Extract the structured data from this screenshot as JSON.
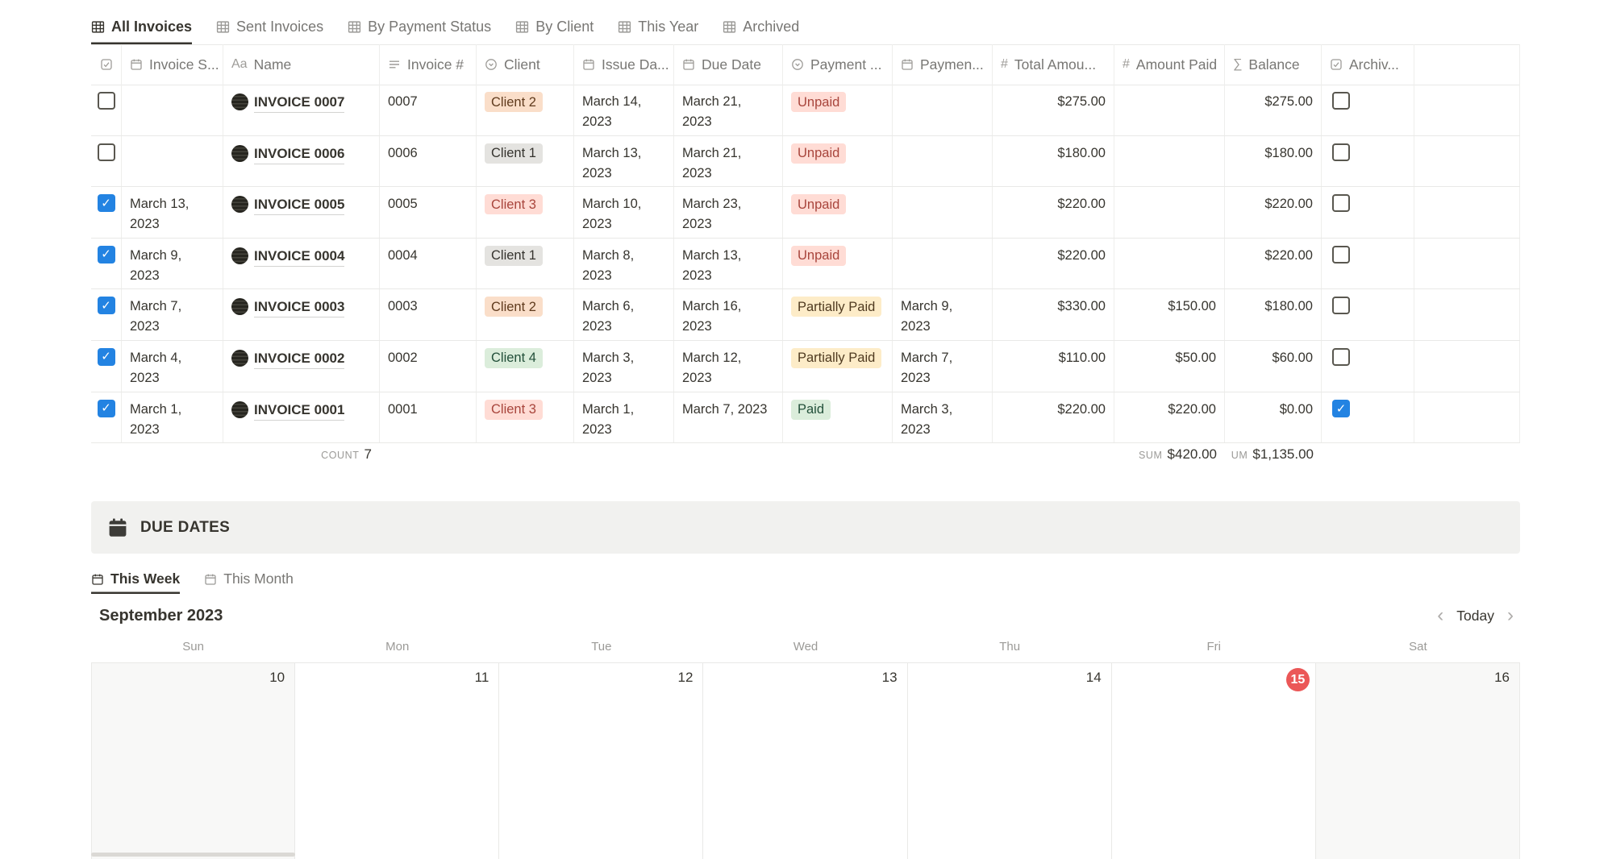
{
  "colors": {
    "accent_blue": "#2383e2",
    "today_red": "#eb5757",
    "banner_bg": "#f1f1ef",
    "divider": "#e9e9e7",
    "tag_orange_bg": "#fadec9",
    "tag_gray_bg": "#e4e3e0",
    "tag_red_bg": "#ffdcd5",
    "tag_green_bg": "#dbeddb",
    "tag_yellow_bg": "#fdecc8"
  },
  "view_tabs": [
    {
      "label": "All Invoices",
      "active": true
    },
    {
      "label": "Sent Invoices",
      "active": false
    },
    {
      "label": "By Payment Status",
      "active": false
    },
    {
      "label": "By Client",
      "active": false
    },
    {
      "label": "This Year",
      "active": false
    },
    {
      "label": "Archived",
      "active": false
    }
  ],
  "table": {
    "columns": [
      {
        "label": "",
        "icon": "checkbox-icon"
      },
      {
        "label": "Invoice S...",
        "icon": "calendar-icon"
      },
      {
        "label": "Name",
        "icon": "Aa"
      },
      {
        "label": "Invoice #",
        "icon": "text-icon"
      },
      {
        "label": "Client",
        "icon": "select-icon"
      },
      {
        "label": "Issue Da...",
        "icon": "calendar-icon"
      },
      {
        "label": "Due Date",
        "icon": "calendar-icon"
      },
      {
        "label": "Payment ...",
        "icon": "select-icon"
      },
      {
        "label": "Paymen...",
        "icon": "calendar-icon"
      },
      {
        "label": "Total Amou...",
        "icon": "hash-icon"
      },
      {
        "label": "Amount Paid",
        "icon": "hash-icon"
      },
      {
        "label": "Balance",
        "icon": "sigma-icon"
      },
      {
        "label": "Archiv...",
        "icon": "checkbox-icon"
      }
    ],
    "rows": [
      {
        "selected": "unchecked",
        "invoice_sent": "",
        "name": "INVOICE 0007",
        "number": "0007",
        "client": "Client 2",
        "client_color": "orange",
        "issue_date": "March 14,\n2023",
        "due_date": "March 21,\n2023",
        "status": "Unpaid",
        "status_color": "red",
        "payment_date": "",
        "total": "$275.00",
        "amount_paid": "",
        "balance": "$275.00",
        "archived": "unchecked"
      },
      {
        "selected": "unchecked",
        "invoice_sent": "",
        "name": "INVOICE 0006",
        "number": "0006",
        "client": "Client 1",
        "client_color": "gray",
        "issue_date": "March 13,\n2023",
        "due_date": "March 21,\n2023",
        "status": "Unpaid",
        "status_color": "red",
        "payment_date": "",
        "total": "$180.00",
        "amount_paid": "",
        "balance": "$180.00",
        "archived": "unchecked"
      },
      {
        "selected": "checked",
        "invoice_sent": "March 13,\n2023",
        "name": "INVOICE 0005",
        "number": "0005",
        "client": "Client 3",
        "client_color": "red",
        "issue_date": "March 10,\n2023",
        "due_date": "March 23,\n2023",
        "status": "Unpaid",
        "status_color": "red",
        "payment_date": "",
        "total": "$220.00",
        "amount_paid": "",
        "balance": "$220.00",
        "archived": "unchecked"
      },
      {
        "selected": "checked",
        "invoice_sent": "March 9, 2023",
        "name": "INVOICE 0004",
        "number": "0004",
        "client": "Client 1",
        "client_color": "gray",
        "issue_date": "March 8,\n2023",
        "due_date": "March 13,\n2023",
        "status": "Unpaid",
        "status_color": "red",
        "payment_date": "",
        "total": "$220.00",
        "amount_paid": "",
        "balance": "$220.00",
        "archived": "unchecked"
      },
      {
        "selected": "checked",
        "invoice_sent": "March 7, 2023",
        "name": "INVOICE 0003",
        "number": "0003",
        "client": "Client 2",
        "client_color": "orange",
        "issue_date": "March 6,\n2023",
        "due_date": "March 16,\n2023",
        "status": "Partially Paid",
        "status_color": "yellow",
        "payment_date": "March 9,\n2023",
        "total": "$330.00",
        "amount_paid": "$150.00",
        "balance": "$180.00",
        "archived": "unchecked"
      },
      {
        "selected": "checked",
        "invoice_sent": "March 4, 2023",
        "name": "INVOICE 0002",
        "number": "0002",
        "client": "Client 4",
        "client_color": "green",
        "issue_date": "March 3,\n2023",
        "due_date": "March 12,\n2023",
        "status": "Partially Paid",
        "status_color": "yellow",
        "payment_date": "March 7,\n2023",
        "total": "$110.00",
        "amount_paid": "$50.00",
        "balance": "$60.00",
        "archived": "unchecked"
      },
      {
        "selected": "checked",
        "invoice_sent": "March 1, 2023",
        "name": "INVOICE 0001",
        "number": "0001",
        "client": "Client 3",
        "client_color": "red",
        "issue_date": "March 1,\n2023",
        "due_date": "March 7, 2023",
        "status": "Paid",
        "status_color": "green",
        "payment_date": "March 3,\n2023",
        "total": "$220.00",
        "amount_paid": "$220.00",
        "balance": "$0.00",
        "archived": "checked"
      }
    ],
    "footer": {
      "count_label": "COUNT",
      "count_value": "7",
      "sum_paid_label": "SUM",
      "sum_paid_value": "$420.00",
      "sum_balance_label": "UM",
      "sum_balance_value": "$1,135.00"
    }
  },
  "due_dates": {
    "title": "DUE DATES",
    "tabs": [
      {
        "label": "This Week",
        "active": true
      },
      {
        "label": "This Month",
        "active": false
      }
    ]
  },
  "calendar": {
    "title": "September 2023",
    "nav": {
      "prev": "‹",
      "today": "Today",
      "next": "›"
    },
    "day_names": [
      "Sun",
      "Mon",
      "Tue",
      "Wed",
      "Thu",
      "Fri",
      "Sat"
    ],
    "days": [
      {
        "label": "10",
        "kind": "weekend"
      },
      {
        "label": "11",
        "kind": "normal"
      },
      {
        "label": "12",
        "kind": "normal"
      },
      {
        "label": "13",
        "kind": "normal"
      },
      {
        "label": "14",
        "kind": "normal"
      },
      {
        "label": "15",
        "kind": "today"
      },
      {
        "label": "16",
        "kind": "weekend"
      }
    ]
  }
}
